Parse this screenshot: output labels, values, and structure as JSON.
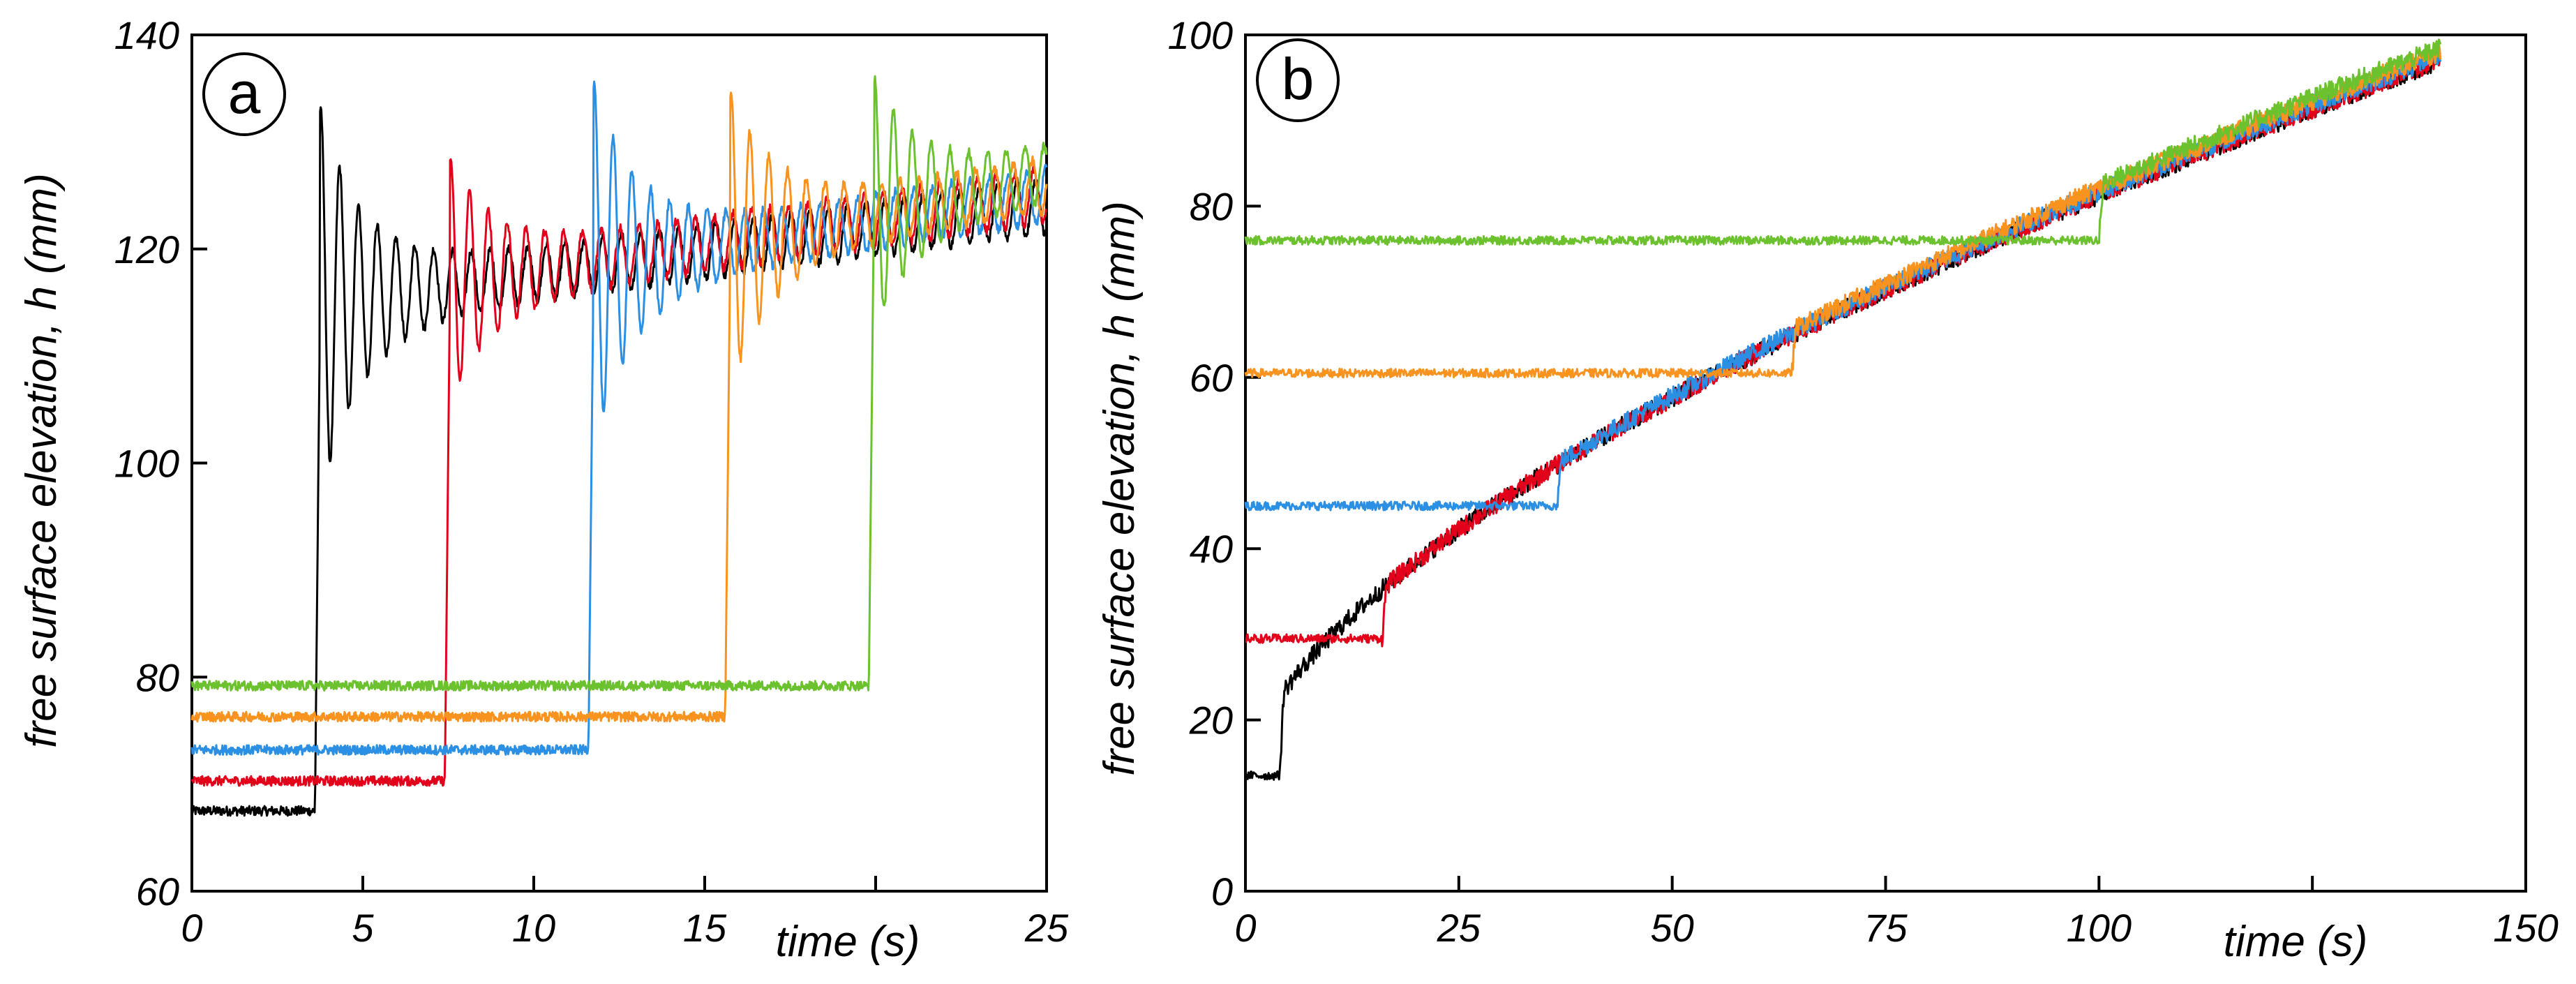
{
  "chart_data": [
    {
      "panel": "a",
      "type": "line",
      "xlabel": "time (s)",
      "ylabel": "free surface elevation, h (mm)",
      "xlim": [
        0,
        25
      ],
      "ylim": [
        60,
        140
      ],
      "xticks": [
        0,
        5,
        10,
        15,
        20,
        25
      ],
      "yticks": [
        60,
        80,
        100,
        120,
        140
      ],
      "xtick_labels": [
        "0",
        "5",
        "10",
        "15",
        "",
        "25"
      ],
      "ytick_labels": [
        "60",
        "80",
        "100",
        "120",
        "140"
      ],
      "series": [
        {
          "name": "black",
          "color": "#000000",
          "h0": 67.5,
          "t_arrival": 3.6,
          "peak": 131,
          "settle": 115,
          "end": 124
        },
        {
          "name": "red",
          "color": "#e3001b",
          "h0": 70.3,
          "t_arrival": 7.4,
          "peak": 126,
          "settle": 117,
          "end": 125
        },
        {
          "name": "blue",
          "color": "#2b8fe3",
          "h0": 73.2,
          "t_arrival": 11.6,
          "peak": 133.5,
          "settle": 118.5,
          "end": 125
        },
        {
          "name": "orange",
          "color": "#f7931e",
          "h0": 76.3,
          "t_arrival": 15.6,
          "peak": 132.5,
          "settle": 121,
          "end": 126
        },
        {
          "name": "green",
          "color": "#6cc12e",
          "h0": 79.2,
          "t_arrival": 19.8,
          "peak": 133.5,
          "settle": 124,
          "end": 127
        }
      ]
    },
    {
      "panel": "b",
      "type": "line",
      "xlabel": "time (s)",
      "ylabel": "free surface elevation, h (mm)",
      "xlim": [
        0,
        150
      ],
      "ylim": [
        0,
        100
      ],
      "xticks": [
        0,
        25,
        50,
        75,
        100,
        125,
        150
      ],
      "yticks": [
        0,
        20,
        40,
        60,
        80,
        100
      ],
      "xtick_labels": [
        "0",
        "25",
        "50",
        "75",
        "100",
        "",
        "150"
      ],
      "ytick_labels": [
        "0",
        "20",
        "40",
        "60",
        "80",
        "100"
      ],
      "series": [
        {
          "name": "black",
          "color": "#000000",
          "h0": 13.5,
          "t_arrival": 4,
          "end": 97,
          "t_end": 140
        },
        {
          "name": "red",
          "color": "#e3001b",
          "h0": 29.5,
          "t_arrival": 16,
          "end": 97,
          "t_end": 140
        },
        {
          "name": "blue",
          "color": "#2b8fe3",
          "h0": 45,
          "t_arrival": 36.5,
          "end": 97.5,
          "t_end": 140
        },
        {
          "name": "orange",
          "color": "#f7931e",
          "h0": 60.5,
          "t_arrival": 64,
          "end": 98,
          "t_end": 140
        },
        {
          "name": "green",
          "color": "#6cc12e",
          "h0": 76,
          "t_arrival": 100,
          "end": 98.5,
          "t_end": 140
        }
      ]
    }
  ]
}
